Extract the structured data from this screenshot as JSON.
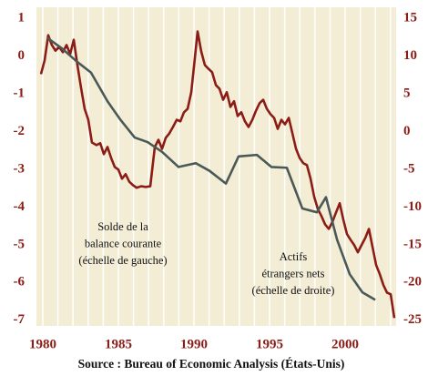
{
  "chart_data": {
    "type": "line",
    "source": "Source : Bureau of Economic Analysis (États-Unis)",
    "xlim": [
      1979.58,
      2003.37
    ],
    "xticks": [
      1980,
      1985,
      1990,
      1995,
      2000
    ],
    "minor_xticks": [
      1980,
      1981,
      1982,
      1983,
      1984,
      1985,
      1986,
      1987,
      1988,
      1989,
      1990,
      1991,
      1992,
      1993,
      1994,
      1995,
      1996,
      1997,
      1998,
      1999,
      2000,
      2001,
      2002,
      2003
    ],
    "ylim": [
      -7.15,
      1.29
    ],
    "yticks": [
      1,
      0,
      -1,
      -2,
      -3,
      -4,
      -5,
      -6,
      -7
    ],
    "y2lim": [
      -25.75,
      16.45
    ],
    "y2ticks": [
      15,
      10,
      5,
      0,
      -5,
      -10,
      -15,
      -20,
      -25
    ],
    "grid": true,
    "annotations": [
      {
        "lines": [
          "Solde de la",
          "balance courante",
          "(échelle de gauche)"
        ]
      },
      {
        "lines": [
          "Actifs",
          "étrangers nets",
          "(échelle de droite)"
        ]
      }
    ],
    "series": [
      {
        "name": "Solde de la balance courante",
        "color": "#8c1c16",
        "axis": "y",
        "x": [
          1979.88,
          1980.12,
          1980.36,
          1980.6,
          1980.84,
          1981.08,
          1981.33,
          1981.57,
          1981.81,
          1982.05,
          1982.29,
          1982.53,
          1982.77,
          1983.01,
          1983.25,
          1983.55,
          1983.8,
          1984.04,
          1984.28,
          1984.52,
          1984.76,
          1985.0,
          1985.24,
          1985.48,
          1985.72,
          1985.96,
          1986.2,
          1986.51,
          1986.81,
          1987.11,
          1987.41,
          1987.65,
          1987.89,
          1988.13,
          1988.37,
          1988.61,
          1988.86,
          1989.1,
          1989.34,
          1989.58,
          1989.82,
          1990.06,
          1990.24,
          1990.48,
          1990.72,
          1990.96,
          1991.2,
          1991.45,
          1991.69,
          1991.93,
          1992.17,
          1992.41,
          1992.65,
          1992.89,
          1993.13,
          1993.37,
          1993.61,
          1993.86,
          1994.1,
          1994.34,
          1994.58,
          1994.82,
          1995.06,
          1995.3,
          1995.54,
          1995.78,
          1996.02,
          1996.27,
          1996.51,
          1996.75,
          1996.99,
          1997.23,
          1997.47,
          1997.71,
          1997.95,
          1998.19,
          1998.43,
          1998.67,
          1998.92,
          1999.16,
          1999.4,
          1999.64,
          1999.88,
          2000.12,
          2000.36,
          2000.6,
          2000.84,
          2001.08,
          2001.33,
          2001.57,
          2001.81,
          2002.05,
          2002.29,
          2002.53,
          2002.77,
          2003.01,
          2003.25
        ],
        "values": [
          -0.48,
          -0.12,
          0.55,
          0.29,
          0.14,
          0.24,
          0.1,
          0.29,
          0.05,
          0.43,
          -0.24,
          -0.84,
          -1.4,
          -1.69,
          -2.29,
          -2.36,
          -2.31,
          -2.6,
          -2.41,
          -2.7,
          -2.94,
          -3.01,
          -3.25,
          -3.13,
          -3.33,
          -3.42,
          -3.49,
          -3.45,
          -3.47,
          -3.45,
          -2.41,
          -2.22,
          -2.46,
          -2.17,
          -2.05,
          -1.88,
          -1.69,
          -1.73,
          -1.49,
          -1.4,
          -0.96,
          -0.05,
          0.65,
          0.12,
          -0.24,
          -0.34,
          -0.43,
          -0.77,
          -0.87,
          -1.16,
          -0.96,
          -1.35,
          -1.2,
          -1.59,
          -1.49,
          -1.73,
          -1.88,
          -1.69,
          -1.45,
          -1.25,
          -1.16,
          -1.4,
          -1.54,
          -1.64,
          -1.93,
          -1.69,
          -1.81,
          -1.64,
          -2.05,
          -2.46,
          -2.7,
          -2.84,
          -2.89,
          -3.25,
          -3.73,
          -4.05,
          -4.24,
          -4.46,
          -4.58,
          -4.39,
          -4.14,
          -3.9,
          -4.34,
          -4.72,
          -4.87,
          -5.01,
          -5.2,
          -5.01,
          -4.82,
          -4.58,
          -5.06,
          -5.54,
          -5.78,
          -6.07,
          -6.27,
          -6.31,
          -6.94
        ]
      },
      {
        "name": "Actifs étrangers nets",
        "color": "#4a5957",
        "axis": "y2",
        "x": [
          1980.3,
          1981.27,
          1982.23,
          1983.19,
          1984.28,
          1985.12,
          1986.08,
          1986.93,
          1987.89,
          1988.98,
          1990.12,
          1991.02,
          1992.11,
          1992.95,
          1994.16,
          1995.12,
          1996.14,
          1997.17,
          1998.13,
          1998.73,
          1999.46,
          2000.3,
          2001.14,
          2001.99
        ],
        "values": [
          12.4,
          11.0,
          9.3,
          7.8,
          4.0,
          1.6,
          -0.8,
          -1.4,
          -2.7,
          -4.7,
          -4.2,
          -5.2,
          -6.9,
          -3.3,
          -3.1,
          -4.7,
          -4.8,
          -10.2,
          -10.7,
          -8.7,
          -14.3,
          -18.9,
          -21.3,
          -22.3
        ]
      }
    ]
  }
}
